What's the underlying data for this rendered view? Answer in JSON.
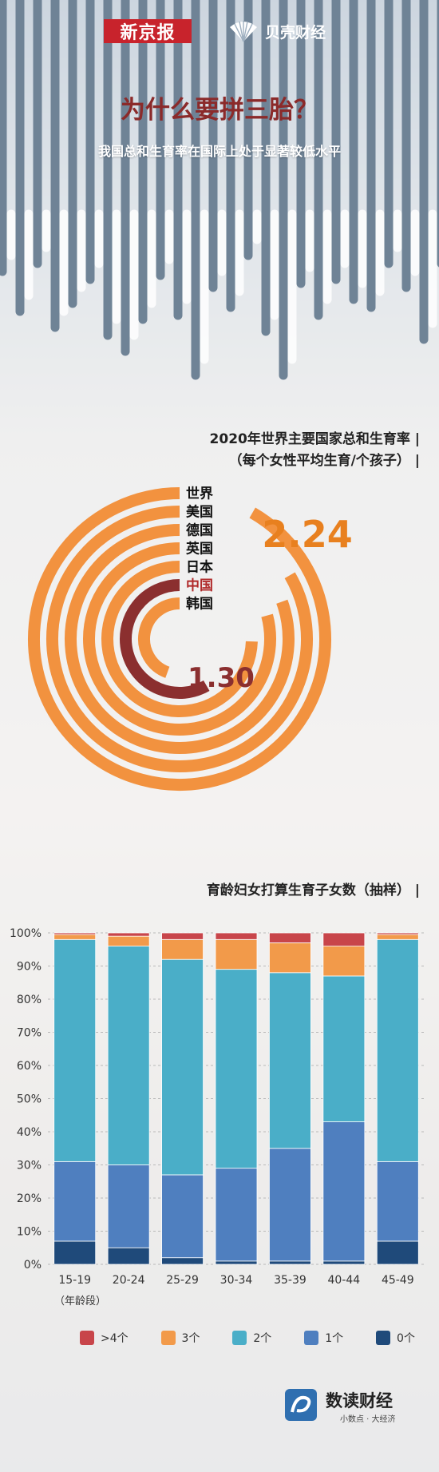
{
  "brand": {
    "xjb": "新京报",
    "bk": "贝壳财经"
  },
  "header": {
    "title": "为什么要拼三胎？",
    "subtitle": "我国总和生育率在国际上处于显著较低水平"
  },
  "colors": {
    "orange": "#f2923f",
    "darkred": "#8b2f2f",
    "c_gt4": "#c8454a",
    "c_3": "#f29a4a",
    "c_2": "#4aaec8",
    "c_1": "#4f7fbf",
    "c_0": "#1f4a7a"
  },
  "chart_data": [
    {
      "type": "radial-bar",
      "title_line1": "2020年世界主要国家总和生育率",
      "title_line2": "（每个女性平均生育/个孩子）",
      "categories": [
        "世界",
        "美国",
        "德国",
        "英国",
        "日本",
        "中国",
        "韩国"
      ],
      "highlight": "中国",
      "value_labels": [
        {
          "category": "世界",
          "value": 2.24,
          "label": "2.24"
        },
        {
          "category": "中国",
          "value": 1.3,
          "label": "1.30"
        }
      ]
    },
    {
      "type": "bar",
      "stacked": true,
      "title": "育龄妇女打算生育子女数（抽样）",
      "categories": [
        "15-19",
        "20-24",
        "25-29",
        "30-34",
        "35-39",
        "40-44",
        "45-49"
      ],
      "xlabel": "（年龄段）",
      "yticks": [
        "0%",
        "10%",
        "20%",
        "30%",
        "40%",
        "50%",
        "60%",
        "70%",
        "80%",
        "90%",
        "100%"
      ],
      "ylim": [
        0,
        100
      ],
      "series": [
        {
          "name": "0个",
          "color": "#1f4a7a",
          "values": [
            7,
            5,
            2,
            1,
            1,
            1,
            7
          ]
        },
        {
          "name": "1个",
          "color": "#4f7fbf",
          "values": [
            24,
            25,
            25,
            28,
            34,
            42,
            24
          ]
        },
        {
          "name": "2个",
          "color": "#4aaec8",
          "values": [
            67,
            66,
            65,
            60,
            53,
            44,
            67
          ]
        },
        {
          "name": "3个",
          "color": "#f29a4a",
          "values": [
            1.5,
            3,
            6,
            9,
            9,
            9,
            1.5
          ]
        },
        {
          "name": ">4个",
          "color": "#c8454a",
          "values": [
            0.5,
            1,
            2,
            2,
            3,
            4,
            0.5
          ]
        }
      ],
      "legend_order": [
        ">4个",
        "3个",
        "2个",
        "1个",
        "0个"
      ]
    }
  ],
  "footer": {
    "brand": "数读财经",
    "tagline": "小数点 · 大经济"
  }
}
